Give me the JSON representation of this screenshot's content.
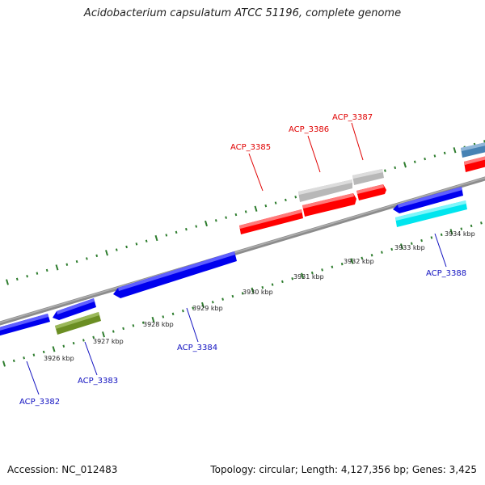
{
  "title": "Acidobacterium capsulatum ATCC 51196, complete genome",
  "footer": {
    "accession": "Accession: NC_012483",
    "summary": "Topology: circular; Length: 4,127,356 bp; Genes: 3,425"
  },
  "colors": {
    "backbone": "#8c8c8c",
    "tick": "#2e7d2e",
    "forward_label": "#e00000",
    "reverse_label": "#1010c0",
    "red": "#ff0000",
    "blue": "#0000ee",
    "gray": "#b8b8b8",
    "olive": "#6b8e23",
    "cyan": "#00e5ee",
    "steelblue": "#4682b4"
  },
  "scale_labels": [
    "3926 kbp",
    "3927 kbp",
    "3928 kbp",
    "3929 kbp",
    "3930 kbp",
    "3931 kbp",
    "3932 kbp",
    "3933 kbp",
    "3934 kbp"
  ],
  "gene_labels": [
    "ACP_3382",
    "ACP_3383",
    "ACP_3384",
    "ACP_3385",
    "ACP_3386",
    "ACP_3387",
    "ACP_3388"
  ]
}
